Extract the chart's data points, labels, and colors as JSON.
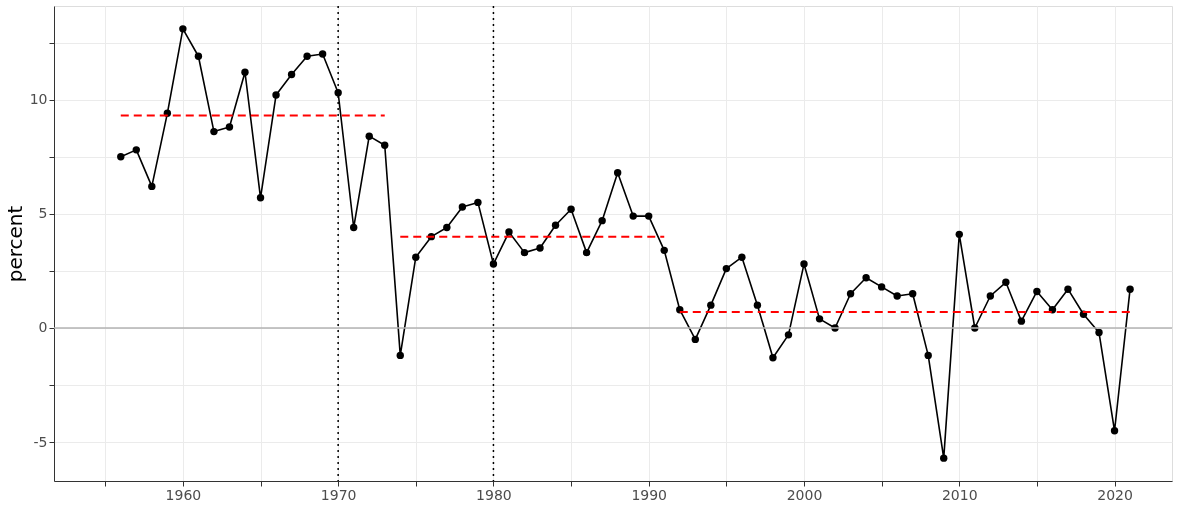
{
  "chart_data": {
    "type": "line",
    "ylabel": "percent",
    "x": [
      1956,
      1957,
      1958,
      1959,
      1960,
      1961,
      1962,
      1963,
      1964,
      1965,
      1966,
      1967,
      1968,
      1969,
      1970,
      1971,
      1972,
      1973,
      1974,
      1975,
      1976,
      1977,
      1978,
      1979,
      1980,
      1981,
      1982,
      1983,
      1984,
      1985,
      1986,
      1987,
      1988,
      1989,
      1990,
      1991,
      1992,
      1993,
      1994,
      1995,
      1996,
      1997,
      1998,
      1999,
      2000,
      2001,
      2002,
      2003,
      2004,
      2005,
      2006,
      2007,
      2008,
      2009,
      2010,
      2011,
      2012,
      2013,
      2014,
      2015,
      2016,
      2017,
      2018,
      2019,
      2020,
      2021
    ],
    "series": [
      {
        "color": "#000000",
        "marker": "circle",
        "line_style": "solid",
        "values": [
          7.5,
          7.8,
          6.2,
          9.4,
          13.1,
          11.9,
          8.6,
          8.8,
          11.2,
          5.7,
          10.2,
          11.1,
          11.9,
          12.0,
          10.3,
          4.4,
          8.4,
          8.0,
          -1.2,
          3.1,
          4.0,
          4.4,
          5.3,
          5.5,
          2.8,
          4.2,
          3.3,
          3.5,
          4.5,
          5.2,
          3.3,
          4.7,
          6.8,
          4.9,
          4.9,
          3.4,
          0.8,
          -0.5,
          1.0,
          2.6,
          3.1,
          1.0,
          -1.3,
          -0.3,
          2.8,
          0.4,
          0.0,
          1.5,
          2.2,
          1.8,
          1.4,
          1.5,
          -1.2,
          -5.7,
          4.1,
          0.0,
          1.4,
          2.0,
          0.3,
          1.6,
          0.8,
          1.7,
          0.6,
          -0.2,
          -4.5,
          1.7
        ]
      },
      {
        "color": "#ff0000",
        "marker": "none",
        "line_style": "dashed",
        "x": [
          1956,
          1973
        ],
        "values": [
          9.3,
          9.3
        ]
      },
      {
        "color": "#ff0000",
        "marker": "none",
        "line_style": "dashed",
        "x": [
          1974,
          1991
        ],
        "values": [
          4.0,
          4.0
        ]
      },
      {
        "color": "#ff0000",
        "marker": "none",
        "line_style": "dashed",
        "x": [
          1992,
          2021
        ],
        "values": [
          0.7,
          0.7
        ]
      }
    ],
    "xlim": [
      1951.7,
      2023.7
    ],
    "xticks": [
      {
        "value": 1955,
        "label": null
      },
      1960,
      {
        "value": 1965,
        "label": null
      },
      1970,
      {
        "value": 1975,
        "label": null
      },
      1980,
      {
        "value": 1985,
        "label": null
      },
      1990,
      {
        "value": 1995,
        "label": null
      },
      2000,
      {
        "value": 2005,
        "label": null
      },
      2010,
      {
        "value": 2015,
        "label": null
      },
      2020
    ],
    "ylim": [
      -6.7,
      14.1
    ],
    "yticks": [
      -5,
      {
        "value": -2.5,
        "label": null
      },
      0,
      {
        "value": 2.5,
        "label": null
      },
      5,
      {
        "value": 7.5,
        "label": null
      },
      10,
      {
        "value": 12.5,
        "label": null
      }
    ],
    "ref_lines": [
      {
        "axis": "y",
        "value": 0,
        "color": "#b3b3b3",
        "line_style": "solid"
      },
      {
        "axis": "x",
        "value": 1970,
        "color": "#000000",
        "line_style": "dotted"
      },
      {
        "axis": "x",
        "value": 1980,
        "color": "#000000",
        "line_style": "dotted"
      }
    ],
    "grid": true
  }
}
